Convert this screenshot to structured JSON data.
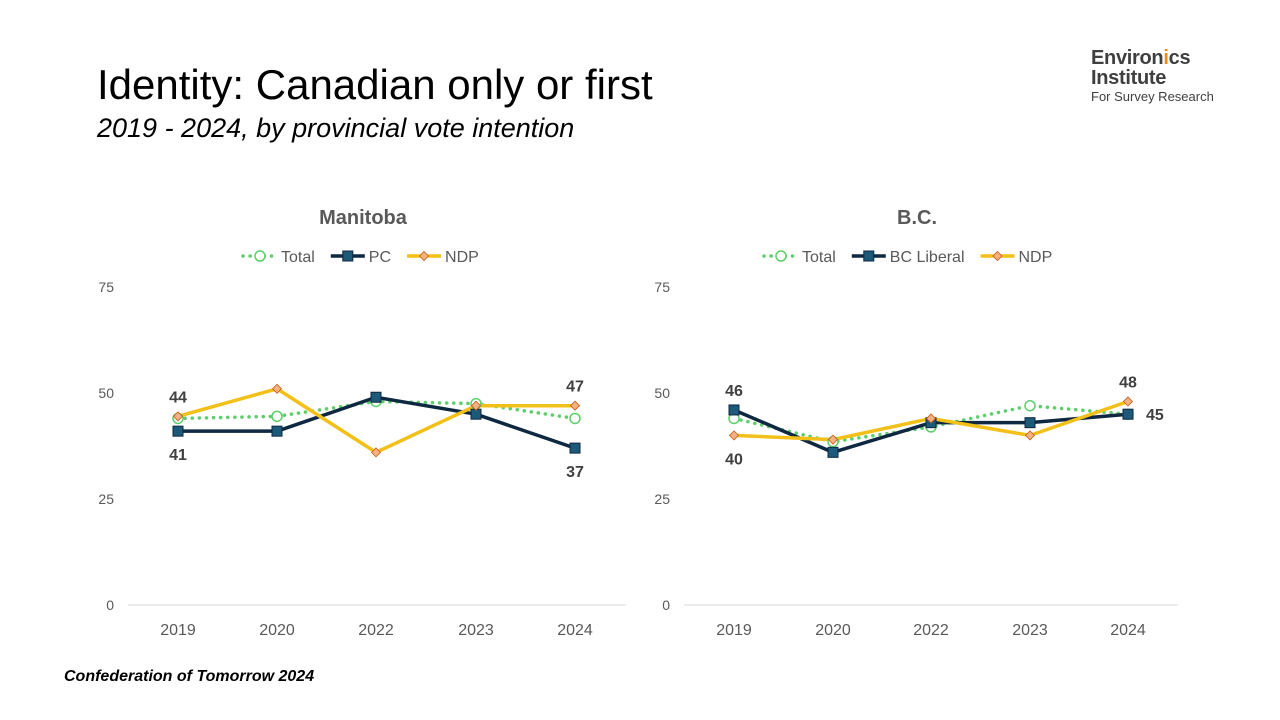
{
  "slide": {
    "title": "Identity: Canadian only or first",
    "subtitle": "2019 - 2024, by provincial vote intention",
    "footer": "Confederation of Tomorrow 2024"
  },
  "logo": {
    "line1_a": "Environ",
    "line1_b": "i",
    "line1_c": "cs",
    "line2_a": "Inst",
    "line2_b": "i",
    "line2_c": "tute",
    "line3": "For Survey Research",
    "colors": {
      "text": "#3f3f3f",
      "accent": "#e98b23"
    }
  },
  "colors": {
    "total": "#5ccf6a",
    "party1": "#0e2841",
    "ndp": "#f2c018",
    "ndp_marker_fill": "#f4b183",
    "party1_marker_fill": "#1d5a7a",
    "axis": "#d9d9d9",
    "tick": "#595959",
    "label": "#404040"
  },
  "chart_data": [
    {
      "type": "line",
      "title": "Manitoba",
      "categories": [
        "2019",
        "2020",
        "2022",
        "2023",
        "2024"
      ],
      "ylim": [
        0,
        75
      ],
      "yticks": [
        0,
        25,
        50,
        75
      ],
      "grid": false,
      "legend_position": "top",
      "series": [
        {
          "name": "Total",
          "key": "total",
          "values": [
            44,
            44.5,
            48,
            47.5,
            44
          ]
        },
        {
          "name": "PC",
          "key": "party1",
          "values": [
            41,
            41,
            49,
            45,
            37
          ]
        },
        {
          "name": "NDP",
          "key": "ndp",
          "values": [
            44.5,
            51,
            36,
            47,
            47
          ]
        }
      ],
      "data_labels": [
        {
          "series": 2,
          "point": 0,
          "text": "44",
          "pos": "above"
        },
        {
          "series": 1,
          "point": 0,
          "text": "41",
          "pos": "below"
        },
        {
          "series": 2,
          "point": 4,
          "text": "47",
          "pos": "above"
        },
        {
          "series": 1,
          "point": 4,
          "text": "37",
          "pos": "below"
        }
      ]
    },
    {
      "type": "line",
      "title": "B.C.",
      "categories": [
        "2019",
        "2020",
        "2022",
        "2023",
        "2024"
      ],
      "ylim": [
        0,
        75
      ],
      "yticks": [
        0,
        25,
        50,
        75
      ],
      "grid": false,
      "legend_position": "top",
      "series": [
        {
          "name": "Total",
          "key": "total",
          "values": [
            44,
            38.5,
            42,
            47,
            45
          ]
        },
        {
          "name": "BC Liberal",
          "key": "party1",
          "values": [
            46,
            36,
            43,
            43,
            45
          ]
        },
        {
          "name": "NDP",
          "key": "ndp",
          "values": [
            40,
            39,
            44,
            40,
            48
          ]
        }
      ],
      "data_labels": [
        {
          "series": 1,
          "point": 0,
          "text": "46",
          "pos": "above"
        },
        {
          "series": 2,
          "point": 0,
          "text": "40",
          "pos": "below"
        },
        {
          "series": 2,
          "point": 4,
          "text": "48",
          "pos": "above"
        },
        {
          "series": 1,
          "point": 4,
          "text": "45",
          "pos": "right"
        }
      ]
    }
  ]
}
